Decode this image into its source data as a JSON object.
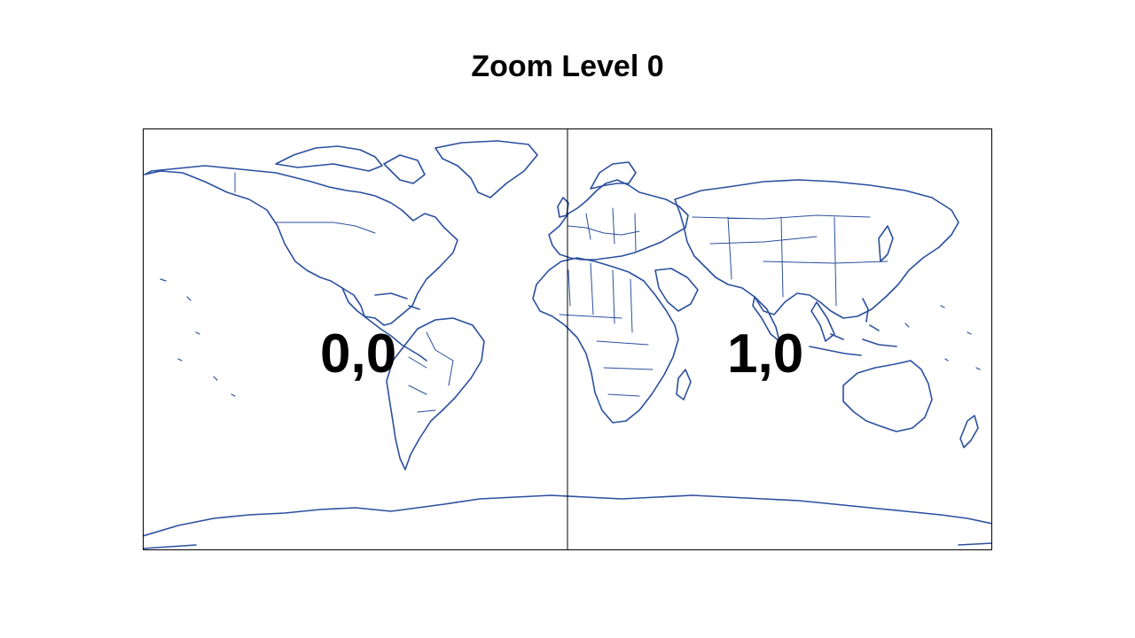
{
  "title": "Zoom Level 0",
  "map": {
    "projection": "web-mercator",
    "outline_color": "#2a4f9e",
    "frame_color": "#000000",
    "tiles": [
      {
        "label": "0,0"
      },
      {
        "label": "1,0"
      }
    ]
  }
}
